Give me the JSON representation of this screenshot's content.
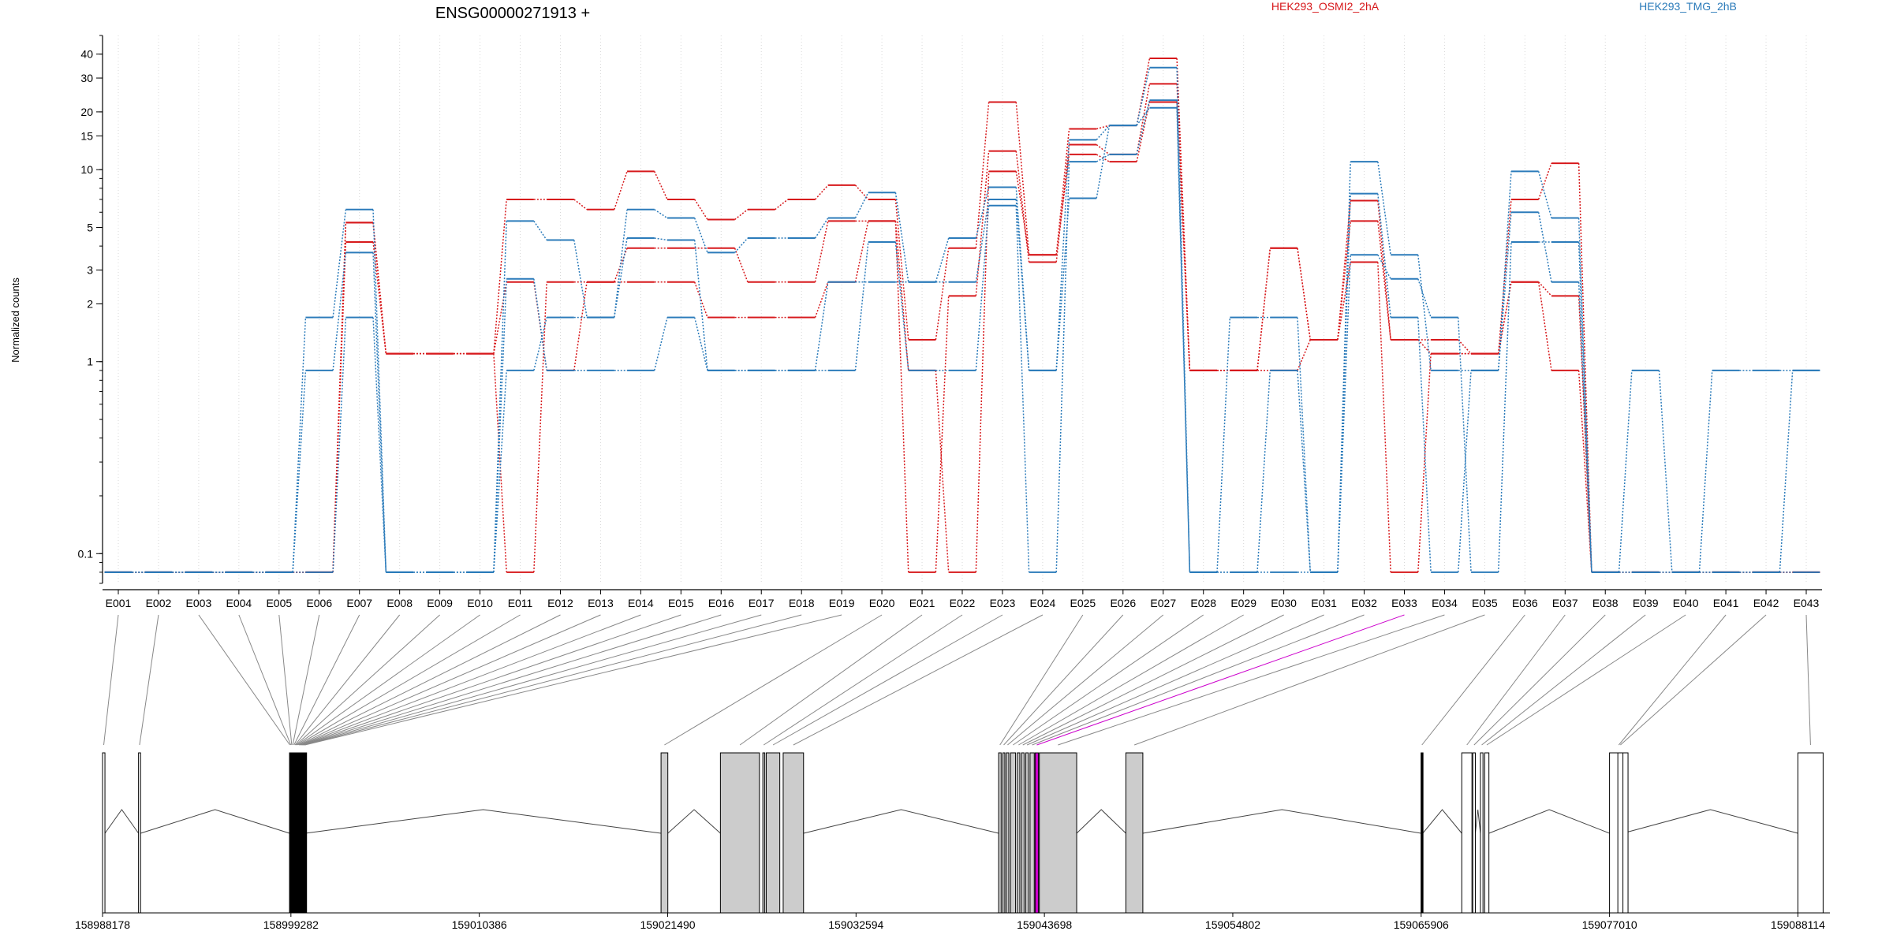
{
  "chart_data": {
    "type": "line",
    "title": "ENSG00000271913 +",
    "ylabel": "Normalized counts",
    "yscale": "log",
    "ylim": [
      0.07,
      50
    ],
    "y_ticks": [
      0.1,
      1,
      2,
      3,
      5,
      10,
      15,
      20,
      30,
      40
    ],
    "y_tick_labels": [
      "0.1",
      "1",
      "2",
      "3",
      "5",
      "10",
      "15",
      "20",
      "30",
      "40"
    ],
    "grid": "vertical-dotted",
    "categories": [
      "E001",
      "E002",
      "E003",
      "E004",
      "E005",
      "E006",
      "E007",
      "E008",
      "E009",
      "E010",
      "E011",
      "E012",
      "E013",
      "E014",
      "E015",
      "E016",
      "E017",
      "E018",
      "E019",
      "E020",
      "E021",
      "E022",
      "E023",
      "E024",
      "E025",
      "E026",
      "E027",
      "E028",
      "E029",
      "E030",
      "E031",
      "E032",
      "E033",
      "E034",
      "E035",
      "E036",
      "E037",
      "E038",
      "E039",
      "E040",
      "E041",
      "E042",
      "E043"
    ],
    "legend": [
      {
        "label": "HEK293_OSMI2_2hA",
        "color": "#d7191c"
      },
      {
        "label": "HEK293_TMG_2hB",
        "color": "#2b7bba"
      }
    ],
    "series": [
      {
        "group": "HEK293_OSMI2_2hA",
        "color": "#d7191c",
        "values": [
          0.08,
          0.08,
          0.08,
          0.08,
          0.08,
          0.08,
          5.3,
          1.1,
          1.1,
          1.1,
          7.0,
          7.0,
          6.2,
          9.8,
          7.0,
          5.5,
          6.2,
          7.0,
          8.3,
          7.0,
          1.3,
          3.9,
          22.5,
          3.6,
          16.3,
          17.0,
          38.0,
          0.9,
          0.9,
          3.9,
          1.3,
          5.4,
          1.3,
          1.3,
          1.1,
          7.0,
          10.8,
          0.08,
          0.08,
          0.08,
          0.08,
          0.08,
          0.08
        ]
      },
      {
        "group": "HEK293_OSMI2_2hA",
        "color": "#d7191c",
        "values": [
          0.08,
          0.08,
          0.08,
          0.08,
          0.08,
          0.08,
          4.2,
          1.1,
          1.1,
          1.1,
          2.6,
          0.9,
          2.6,
          3.9,
          3.9,
          3.9,
          2.6,
          2.6,
          5.4,
          5.4,
          0.08,
          2.2,
          12.5,
          3.3,
          13.5,
          12.0,
          28.0,
          0.9,
          0.9,
          0.9,
          1.3,
          3.3,
          0.08,
          1.1,
          1.1,
          2.6,
          2.2,
          0.08,
          0.08,
          0.08,
          0.08,
          0.08,
          0.08
        ]
      },
      {
        "group": "HEK293_OSMI2_2hA",
        "color": "#d7191c",
        "values": [
          0.08,
          0.08,
          0.08,
          0.08,
          0.08,
          0.08,
          5.3,
          1.1,
          1.1,
          1.1,
          0.08,
          2.6,
          2.6,
          2.6,
          2.6,
          1.7,
          1.7,
          1.7,
          2.6,
          5.4,
          0.9,
          0.08,
          9.8,
          3.6,
          12.0,
          11.0,
          22.5,
          0.9,
          0.9,
          3.9,
          1.3,
          6.9,
          1.3,
          1.1,
          1.1,
          2.6,
          0.9,
          0.08,
          0.08,
          0.08,
          0.08,
          0.08,
          0.08
        ]
      },
      {
        "group": "HEK293_TMG_2hB",
        "color": "#2b7bba",
        "values": [
          0.08,
          0.08,
          0.08,
          0.08,
          0.08,
          1.7,
          6.2,
          0.08,
          0.08,
          0.08,
          5.4,
          4.3,
          1.7,
          6.2,
          5.6,
          3.7,
          4.4,
          4.4,
          5.6,
          7.6,
          2.6,
          4.4,
          8.1,
          0.9,
          14.3,
          17.0,
          34.0,
          0.08,
          1.7,
          1.7,
          0.08,
          11.0,
          3.6,
          0.9,
          0.9,
          9.8,
          5.6,
          0.08,
          0.9,
          0.08,
          0.9,
          0.9,
          0.9
        ]
      },
      {
        "group": "HEK293_TMG_2hB",
        "color": "#2b7bba",
        "values": [
          0.08,
          0.08,
          0.08,
          0.08,
          0.08,
          0.9,
          3.7,
          0.08,
          0.08,
          0.08,
          0.9,
          1.7,
          1.7,
          4.4,
          4.3,
          0.9,
          0.9,
          0.9,
          0.9,
          4.2,
          0.9,
          0.9,
          6.5,
          0.08,
          11.0,
          12.0,
          23.0,
          0.08,
          0.08,
          0.9,
          0.08,
          3.6,
          2.7,
          1.7,
          0.08,
          4.2,
          4.2,
          0.08,
          0.08,
          0.08,
          0.08,
          0.08,
          0.9
        ]
      },
      {
        "group": "HEK293_TMG_2hB",
        "color": "#2b7bba",
        "values": [
          0.08,
          0.08,
          0.08,
          0.08,
          0.08,
          0.08,
          1.7,
          0.08,
          0.08,
          0.08,
          2.7,
          0.9,
          0.9,
          0.9,
          1.7,
          0.9,
          0.9,
          0.9,
          2.6,
          2.6,
          2.6,
          2.6,
          7.0,
          0.9,
          7.1,
          17.0,
          21.0,
          0.08,
          0.08,
          0.08,
          0.08,
          7.5,
          1.7,
          0.08,
          0.9,
          6.0,
          2.6,
          0.08,
          0.08,
          0.08,
          0.08,
          0.08,
          0.08
        ]
      }
    ],
    "gene_model": {
      "start": 158988178,
      "end": 159090000,
      "coord_ticks": [
        158988178,
        158999282,
        159010386,
        159021490,
        159032594,
        159043698,
        159054802,
        159065906,
        159077010,
        159088114
      ],
      "coord_tick_labels": [
        "158988178",
        "158999282",
        "159010386",
        "159021490",
        "159032594",
        "159043698",
        "159054802",
        "159065906",
        "159077010",
        "159088114"
      ],
      "highlight_exon": "E033",
      "highlight_color": "#cc00cc",
      "exons": [
        {
          "id": "E001",
          "s": 158988178,
          "e": 158988320,
          "fill": "#ffffff"
        },
        {
          "id": "E002",
          "s": 158990300,
          "e": 158990420,
          "fill": "#ffffff"
        },
        {
          "id": "E003",
          "s": 158999200,
          "e": 158999240,
          "fill": "#000000"
        },
        {
          "id": "E004",
          "s": 158999250,
          "e": 158999300,
          "fill": "#000000"
        },
        {
          "id": "E005",
          "s": 158999310,
          "e": 158999350,
          "fill": "#000000"
        },
        {
          "id": "E006",
          "s": 158999360,
          "e": 158999420,
          "fill": "#000000"
        },
        {
          "id": "E007",
          "s": 158999430,
          "e": 158999500,
          "fill": "#000000"
        },
        {
          "id": "E008",
          "s": 158999510,
          "e": 158999550,
          "fill": "#000000"
        },
        {
          "id": "E009",
          "s": 158999560,
          "e": 158999600,
          "fill": "#000000"
        },
        {
          "id": "E010",
          "s": 158999610,
          "e": 158999650,
          "fill": "#000000"
        },
        {
          "id": "E011",
          "s": 158999660,
          "e": 158999720,
          "fill": "#000000"
        },
        {
          "id": "E012",
          "s": 158999730,
          "e": 158999780,
          "fill": "#000000"
        },
        {
          "id": "E013",
          "s": 158999790,
          "e": 158999830,
          "fill": "#000000"
        },
        {
          "id": "E014",
          "s": 158999840,
          "e": 158999880,
          "fill": "#000000"
        },
        {
          "id": "E015",
          "s": 158999890,
          "e": 158999930,
          "fill": "#000000"
        },
        {
          "id": "E016",
          "s": 158999940,
          "e": 158999980,
          "fill": "#000000"
        },
        {
          "id": "E017",
          "s": 158999990,
          "e": 159000030,
          "fill": "#000000"
        },
        {
          "id": "E018",
          "s": 159000040,
          "e": 159000080,
          "fill": "#000000"
        },
        {
          "id": "E019",
          "s": 159000090,
          "e": 159000130,
          "fill": "#000000"
        },
        {
          "id": "E020",
          "s": 159021100,
          "e": 159021500,
          "fill": "#cccccc"
        },
        {
          "id": "E021",
          "s": 159024600,
          "e": 159026900,
          "fill": "#cccccc"
        },
        {
          "id": "E022",
          "s": 159027100,
          "e": 159027200,
          "fill": "#cccccc"
        },
        {
          "id": "E023",
          "s": 159027300,
          "e": 159028100,
          "fill": "#cccccc"
        },
        {
          "id": "E024",
          "s": 159028300,
          "e": 159029500,
          "fill": "#cccccc"
        },
        {
          "id": "E025",
          "s": 159041000,
          "e": 159041150,
          "fill": "#cccccc"
        },
        {
          "id": "E026",
          "s": 159041250,
          "e": 159041350,
          "fill": "#cccccc"
        },
        {
          "id": "E027",
          "s": 159041450,
          "e": 159041600,
          "fill": "#cccccc"
        },
        {
          "id": "E028",
          "s": 159041700,
          "e": 159042000,
          "fill": "#cccccc"
        },
        {
          "id": "E029",
          "s": 159042100,
          "e": 159042250,
          "fill": "#cccccc"
        },
        {
          "id": "E030",
          "s": 159042350,
          "e": 159042500,
          "fill": "#cccccc"
        },
        {
          "id": "E031",
          "s": 159042600,
          "e": 159042750,
          "fill": "#cccccc"
        },
        {
          "id": "E032",
          "s": 159042850,
          "e": 159043100,
          "fill": "#cccccc"
        },
        {
          "id": "E033",
          "s": 159043150,
          "e": 159043350,
          "fill": "#cc00cc"
        },
        {
          "id": "E034",
          "s": 159043400,
          "e": 159045600,
          "fill": "#cccccc"
        },
        {
          "id": "E035",
          "s": 159048500,
          "e": 159049500,
          "fill": "#cccccc"
        },
        {
          "id": "E036",
          "s": 159065900,
          "e": 159066000,
          "fill": "#000000"
        },
        {
          "id": "E037",
          "s": 159068300,
          "e": 159068900,
          "fill": "#ffffff"
        },
        {
          "id": "E038",
          "s": 159068950,
          "e": 159069100,
          "fill": "#ffffff"
        },
        {
          "id": "E039",
          "s": 159069400,
          "e": 159069550,
          "fill": "#ffffff"
        },
        {
          "id": "E040",
          "s": 159069650,
          "e": 159069900,
          "fill": "#ffffff"
        },
        {
          "id": "E041",
          "s": 159077010,
          "e": 159078100,
          "fill": "#ffffff"
        },
        {
          "id": "E042",
          "s": 159077500,
          "e": 159077800,
          "fill": "#ffffff"
        },
        {
          "id": "E043",
          "s": 159088114,
          "e": 159089600,
          "fill": "#ffffff"
        }
      ]
    }
  }
}
